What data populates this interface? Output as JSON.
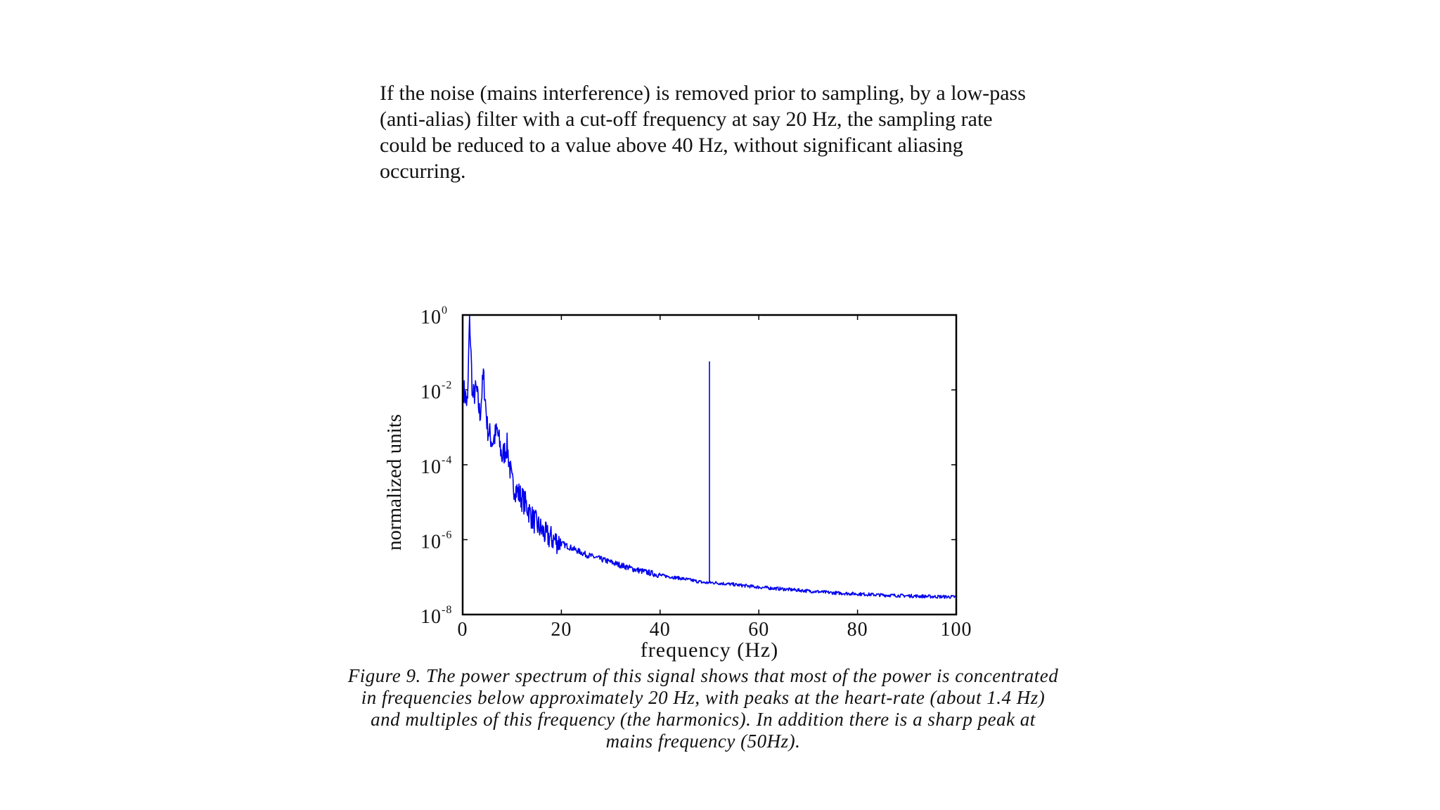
{
  "paragraph": {
    "lines": [
      "If the noise (mains interference) is removed prior to sampling, by a low-pass",
      "(anti-alias) filter with a cut-off frequency at say 20 Hz, the sampling rate",
      "could be reduced to a value above 40 Hz, without significant aliasing",
      "occurring."
    ]
  },
  "chart_data": {
    "type": "line",
    "title": "",
    "xlabel": "frequency (Hz)",
    "ylabel": "normalized units",
    "xlim": [
      0,
      100
    ],
    "ylim_log10": [
      -8,
      0
    ],
    "yscale": "log",
    "x_ticks": [
      "0",
      "20",
      "40",
      "60",
      "80",
      "100"
    ],
    "y_ticks": [
      {
        "base": "10",
        "exp": "0"
      },
      {
        "base": "10",
        "exp": "-2"
      },
      {
        "base": "10",
        "exp": "-4"
      },
      {
        "base": "10",
        "exp": "-6"
      },
      {
        "base": "10",
        "exp": "-8"
      }
    ],
    "grid": false,
    "line_color": "#0000ee",
    "series": [
      {
        "x": [
          0.2,
          1.0,
          1.4,
          2.0,
          2.8,
          3.5,
          4.2,
          5.0,
          6.0,
          7.0,
          8.0,
          9.0,
          10.0,
          11.0,
          12.0,
          13.0,
          14.0,
          15.0,
          17.0,
          20.0,
          25.0,
          30.0,
          35.0,
          40.0,
          45.0,
          49.0,
          50.0,
          51.0,
          55.0,
          60.0,
          65.0,
          70.0,
          75.0,
          80.0,
          85.0,
          90.0,
          95.0,
          100.0
        ],
        "y_log10": [
          -2.0,
          -2.4,
          0.0,
          -2.2,
          -2.0,
          -2.7,
          -1.6,
          -3.0,
          -3.4,
          -3.1,
          -3.8,
          -3.5,
          -4.5,
          -4.7,
          -4.9,
          -5.1,
          -5.4,
          -5.6,
          -5.9,
          -6.1,
          -6.4,
          -6.6,
          -6.8,
          -6.95,
          -7.05,
          -7.15,
          -1.25,
          -7.15,
          -7.2,
          -7.27,
          -7.32,
          -7.37,
          -7.42,
          -7.45,
          -7.48,
          -7.5,
          -7.52,
          -7.53
        ]
      }
    ],
    "annotations": []
  },
  "caption": {
    "lines": [
      "Figure 9. The power spectrum of this signal shows that most of the power is concentrated",
      "in frequencies below approximately 20 Hz, with peaks at the heart-rate (about 1.4 Hz)",
      "and multiples of this frequency (the harmonics). In addition there is a sharp peak at",
      "mains frequency (50Hz)."
    ]
  }
}
